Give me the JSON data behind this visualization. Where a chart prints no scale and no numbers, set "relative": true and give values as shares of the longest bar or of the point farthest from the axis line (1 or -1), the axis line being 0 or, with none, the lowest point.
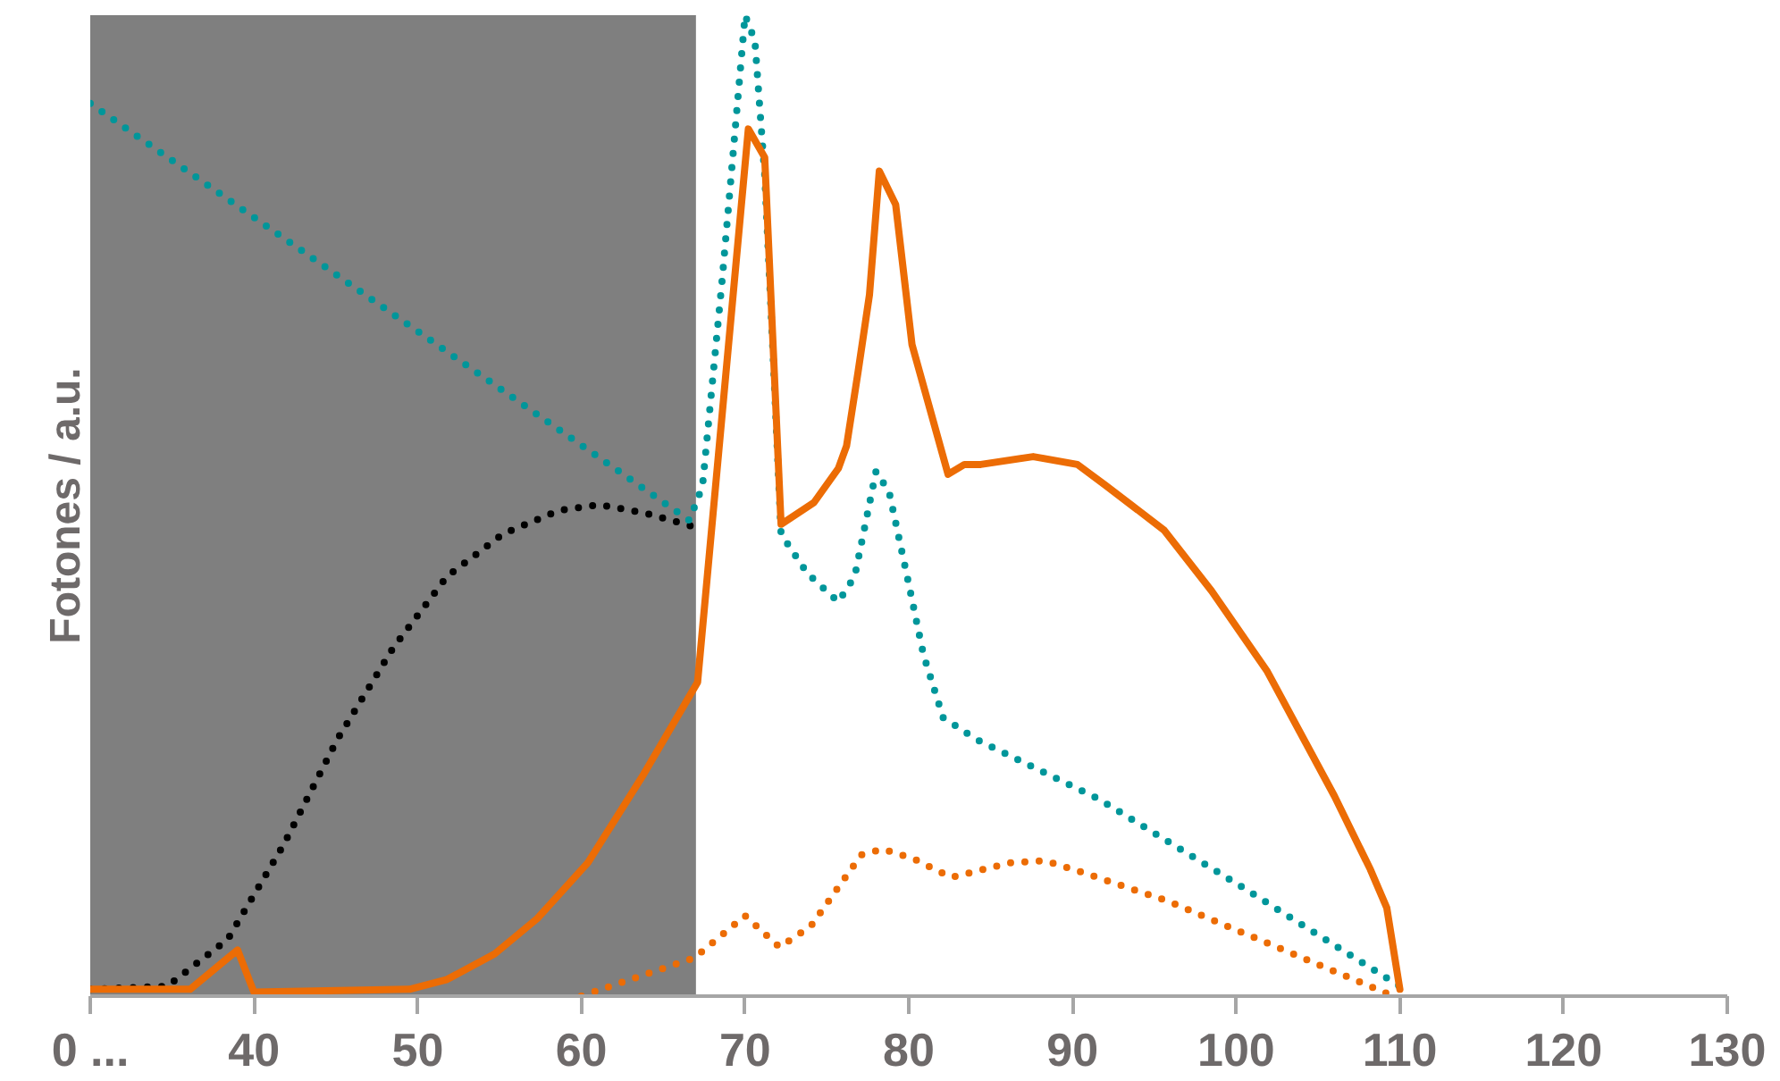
{
  "chart_data": {
    "type": "line",
    "relative": true,
    "ylabel": "Fotones / a.u.",
    "xlim": [
      30,
      130
    ],
    "xticks": [
      {
        "value": 30,
        "label": "0 ..."
      },
      40,
      50,
      60,
      70,
      80,
      90,
      100,
      110,
      120,
      130
    ],
    "grid": false,
    "marker": "none",
    "bands": [
      {
        "axis": "x",
        "from": 30,
        "to": 67,
        "label": null,
        "color": "#7f7f7f"
      }
    ],
    "series": [
      {
        "color": "#000000",
        "line_style": "dotted",
        "x": [
          30,
          34.7,
          38.4,
          41.8,
          45.1,
          48.5,
          51.8,
          55.2,
          58.6,
          61.1,
          64.0,
          67.2
        ],
        "values": [
          0.007,
          0.01,
          0.058,
          0.154,
          0.262,
          0.355,
          0.428,
          0.471,
          0.495,
          0.501,
          0.492,
          0.477
        ]
      },
      {
        "color": "#00969a",
        "line_style": "dotted",
        "x": [
          30,
          66.6,
          67.4,
          68.6,
          70.0,
          70.6,
          71.2,
          71.7,
          72.2,
          73.8,
          75.7,
          76.7,
          78.0,
          78.8,
          79.9,
          80.9,
          82.1,
          84.1,
          91.6,
          100.0,
          110.0
        ],
        "values": [
          0.91,
          0.485,
          0.52,
          0.73,
          1.0,
          0.974,
          0.837,
          0.658,
          0.471,
          0.431,
          0.402,
          0.428,
          0.535,
          0.514,
          0.428,
          0.348,
          0.284,
          0.262,
          0.201,
          0.115,
          0.01
        ]
      },
      {
        "color": "#ec6c05",
        "line_style": "solid",
        "x": [
          30,
          36.1,
          39.0,
          40.0,
          49.5,
          51.8,
          54.7,
          57.3,
          60.4,
          63.8,
          67.1,
          70.2,
          71.2,
          72.2,
          74.2,
          75.7,
          76.2,
          76.9,
          77.6,
          78.2,
          79.2,
          80.2,
          82.4,
          83.4,
          84.4,
          87.6,
          90.3,
          92.0,
          95.6,
          98.5,
          101.9,
          106.0,
          108.2,
          109.2,
          110.0
        ],
        "values": [
          0.007,
          0.007,
          0.047,
          0.004,
          0.007,
          0.017,
          0.043,
          0.079,
          0.136,
          0.226,
          0.32,
          0.884,
          0.855,
          0.481,
          0.503,
          0.538,
          0.561,
          0.636,
          0.715,
          0.841,
          0.807,
          0.664,
          0.532,
          0.542,
          0.542,
          0.55,
          0.542,
          0.521,
          0.475,
          0.413,
          0.331,
          0.204,
          0.129,
          0.09,
          0.007
        ]
      },
      {
        "color": "#ec6c05",
        "line_style": "dotted",
        "x": [
          60.0,
          66.9,
          70.0,
          72.1,
          74.0,
          77.1,
          78.4,
          80.3,
          82.6,
          86.2,
          88.3,
          90.1,
          95.8,
          109.6
        ],
        "values": [
          0.0,
          0.039,
          0.082,
          0.05,
          0.071,
          0.144,
          0.15,
          0.14,
          0.121,
          0.136,
          0.138,
          0.129,
          0.097,
          0.0
        ]
      }
    ]
  }
}
